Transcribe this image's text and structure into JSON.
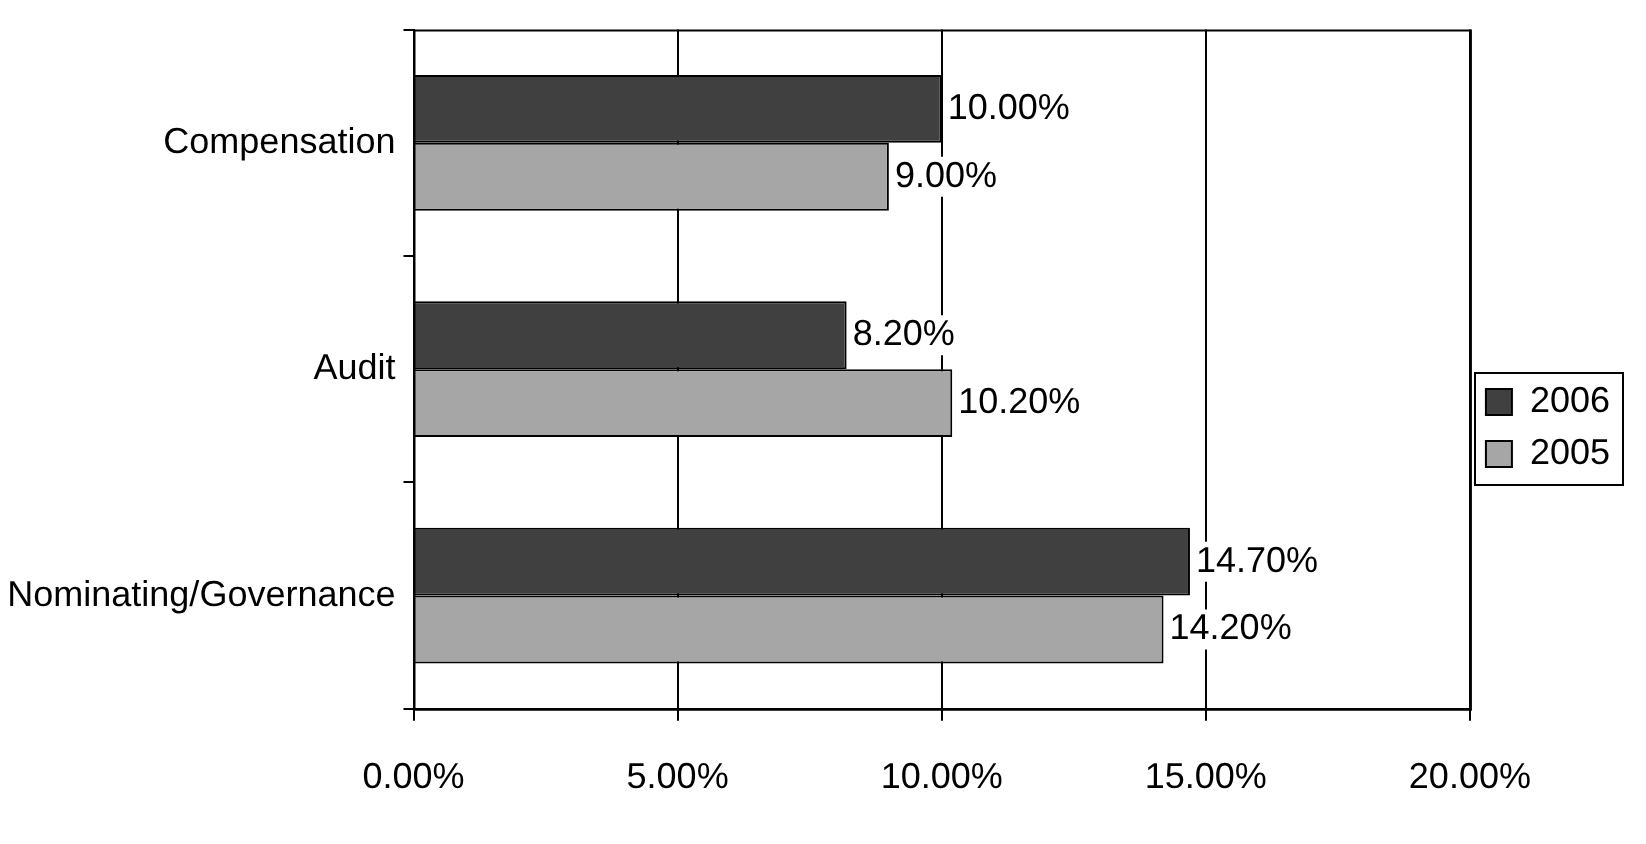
{
  "chart_data": {
    "type": "bar",
    "orientation": "horizontal",
    "categories": [
      "Compensation",
      "Audit",
      "Nominating/Governance"
    ],
    "series": [
      {
        "name": "2006",
        "color": "#404040",
        "values": [
          10,
          8.2,
          14.7
        ],
        "value_labels": [
          "10.00%",
          "8.20%",
          "14.70%"
        ]
      },
      {
        "name": "2005",
        "color": "#a6a6a6",
        "values": [
          9,
          10.2,
          14.2
        ],
        "value_labels": [
          "9.00%",
          "10.20%",
          "14.20%"
        ]
      }
    ],
    "xlim": [
      0,
      20
    ],
    "xticks": [
      {
        "value": 0,
        "label": "0.00%"
      },
      {
        "value": 5,
        "label": "5.00%"
      },
      {
        "value": 10,
        "label": "10.00%"
      },
      {
        "value": 15,
        "label": "15.00%"
      },
      {
        "value": 20,
        "label": "20.00%"
      }
    ],
    "grid": "x",
    "legend": "right"
  }
}
